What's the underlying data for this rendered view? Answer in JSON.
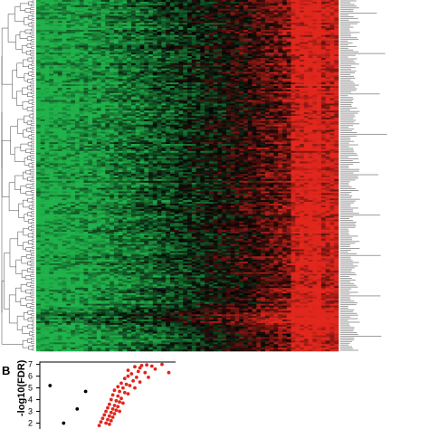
{
  "figure": {
    "panel_b_label": "B"
  },
  "chart_data": [
    {
      "type": "heatmap",
      "title": "",
      "rows": 200,
      "columns": 70,
      "palette": {
        "low": "#1fb24a",
        "mid": "#050505",
        "high": "#e1261c"
      },
      "row_dendrogram": true,
      "row_labels_legible": false,
      "column_trend": "left columns mostly low (green), middle mixed (black), right columns mostly high (red)"
    },
    {
      "type": "scatter",
      "title": "",
      "xlabel": "",
      "ylabel": "-log10(FDR)",
      "y_ticks": [
        "2",
        "3",
        "4",
        "5",
        "6",
        "7"
      ],
      "ylim": [
        1.5,
        7.2
      ],
      "series": [
        {
          "color": "#e1261c",
          "points": [
            [
              1.0,
              6.9
            ],
            [
              1.15,
              6.95
            ],
            [
              1.3,
              6.85
            ],
            [
              0.95,
              6.7
            ],
            [
              1.4,
              6.6
            ],
            [
              0.8,
              6.8
            ],
            [
              0.9,
              6.4
            ],
            [
              1.1,
              6.3
            ],
            [
              0.7,
              6.2
            ],
            [
              0.6,
              6.0
            ],
            [
              0.85,
              5.9
            ],
            [
              0.5,
              5.8
            ],
            [
              0.75,
              5.6
            ],
            [
              0.4,
              5.4
            ],
            [
              0.55,
              5.3
            ],
            [
              0.3,
              5.1
            ],
            [
              0.45,
              5.0
            ],
            [
              0.65,
              5.2
            ],
            [
              0.2,
              4.8
            ],
            [
              0.35,
              4.7
            ],
            [
              0.5,
              4.6
            ],
            [
              0.15,
              4.4
            ],
            [
              0.3,
              4.3
            ],
            [
              0.4,
              4.1
            ],
            [
              0.1,
              4.0
            ],
            [
              0.25,
              3.9
            ],
            [
              0.35,
              3.8
            ],
            [
              0.05,
              3.6
            ],
            [
              0.2,
              3.5
            ],
            [
              0.3,
              3.4
            ],
            [
              0.0,
              3.3
            ],
            [
              0.15,
              3.2
            ],
            [
              0.25,
              3.1
            ],
            [
              -0.05,
              3.0
            ],
            [
              0.1,
              2.9
            ],
            [
              0.2,
              2.8
            ],
            [
              -0.1,
              2.7
            ],
            [
              0.05,
              2.6
            ],
            [
              0.15,
              2.5
            ],
            [
              -0.15,
              2.4
            ],
            [
              0.0,
              2.3
            ],
            [
              0.1,
              2.2
            ],
            [
              -0.2,
              2.1
            ],
            [
              -0.05,
              2.0
            ],
            [
              0.05,
              1.9
            ],
            [
              -0.25,
              1.8
            ],
            [
              1.8,
              6.3
            ],
            [
              1.6,
              7.0
            ],
            [
              0.6,
              6.5
            ],
            [
              1.2,
              5.9
            ],
            [
              0.95,
              5.5
            ],
            [
              0.8,
              5.0
            ],
            [
              0.6,
              4.5
            ],
            [
              0.45,
              3.7
            ],
            [
              0.35,
              3.0
            ]
          ]
        },
        {
          "color": "#000000",
          "points": [
            [
              -1.7,
              5.2
            ],
            [
              -0.65,
              4.7
            ],
            [
              -0.9,
              3.2
            ],
            [
              -1.3,
              2.0
            ]
          ]
        }
      ],
      "xlim": [
        -2.0,
        2.0
      ]
    }
  ]
}
